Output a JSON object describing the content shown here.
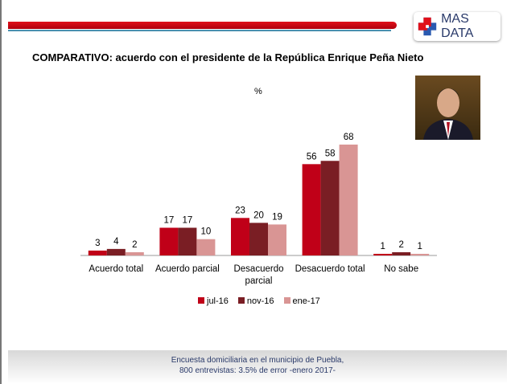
{
  "logo": {
    "text": "MAS DATA"
  },
  "title": "COMPARATIVO: acuerdo con el presidente de la República Enrique Peña Nieto",
  "footer": {
    "line1": "Encuesta domiciliaria en el municipio de Puebla,",
    "line2": "800 entrevistas: 3.5% de error -enero 2017-"
  },
  "chart_data": {
    "type": "bar",
    "title": "COMPARATIVO: acuerdo con el presidente de la República Enrique Peña Nieto",
    "ylabel": "%",
    "categories": [
      "Acuerdo total",
      "Acuerdo parcial",
      "Desacuerdo parcial",
      "Desacuerdo total",
      "No sabe"
    ],
    "series": [
      {
        "name": "jul-16",
        "color": "#C00018",
        "values": [
          3,
          17,
          23,
          56,
          1
        ]
      },
      {
        "name": "nov-16",
        "color": "#7A1E24",
        "values": [
          4,
          17,
          20,
          58,
          2
        ]
      },
      {
        "name": "ene-17",
        "color": "#D99594",
        "values": [
          2,
          10,
          19,
          68,
          1
        ]
      }
    ],
    "ylim": [
      0,
      70
    ],
    "grid": false,
    "legend": "bottom"
  }
}
